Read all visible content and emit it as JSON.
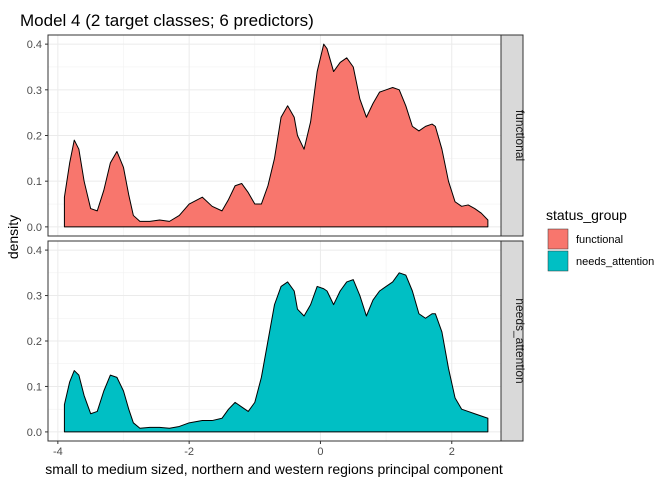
{
  "chart_data": {
    "type": "area",
    "title": "Model 4 (2 target classes; 6 predictors)",
    "xlabel": "small to medium sized, northern and western regions principal component",
    "ylabel": "density",
    "xlim": [
      -4.15,
      2.75
    ],
    "ylim": [
      -0.02,
      0.42
    ],
    "x_ticks": [
      -4,
      -2,
      0,
      2
    ],
    "x_tick_labels": [
      "-4",
      "-2",
      "0",
      "2"
    ],
    "y_ticks": [
      0.0,
      0.1,
      0.2,
      0.3,
      0.4
    ],
    "y_tick_labels": [
      "0.0",
      "0.1",
      "0.2",
      "0.3",
      "0.4"
    ],
    "grid": true,
    "facet_by": "status_group",
    "legend": {
      "title": "status_group",
      "position": "right",
      "entries": [
        {
          "label": "functional",
          "color": "#F8766D"
        },
        {
          "label": "needs_attention",
          "color": "#00BFC4"
        }
      ]
    },
    "series": [
      {
        "name": "functional",
        "color": "#F8766D",
        "x": [
          -3.9,
          -3.82,
          -3.75,
          -3.68,
          -3.6,
          -3.5,
          -3.4,
          -3.3,
          -3.2,
          -3.1,
          -3.0,
          -2.92,
          -2.85,
          -2.75,
          -2.6,
          -2.45,
          -2.3,
          -2.15,
          -2.0,
          -1.8,
          -1.65,
          -1.5,
          -1.4,
          -1.3,
          -1.2,
          -1.1,
          -1.0,
          -0.9,
          -0.8,
          -0.7,
          -0.6,
          -0.5,
          -0.4,
          -0.35,
          -0.25,
          -0.15,
          -0.05,
          0.05,
          0.1,
          0.2,
          0.3,
          0.4,
          0.5,
          0.6,
          0.7,
          0.8,
          0.9,
          1.0,
          1.1,
          1.2,
          1.3,
          1.4,
          1.5,
          1.6,
          1.7,
          1.75,
          1.85,
          1.95,
          2.05,
          2.15,
          2.25,
          2.35,
          2.45,
          2.55
        ],
        "y": [
          0.065,
          0.14,
          0.19,
          0.17,
          0.1,
          0.04,
          0.035,
          0.08,
          0.14,
          0.165,
          0.13,
          0.07,
          0.025,
          0.012,
          0.012,
          0.015,
          0.012,
          0.025,
          0.05,
          0.065,
          0.045,
          0.035,
          0.06,
          0.09,
          0.095,
          0.075,
          0.05,
          0.05,
          0.09,
          0.15,
          0.24,
          0.265,
          0.24,
          0.2,
          0.17,
          0.23,
          0.34,
          0.4,
          0.39,
          0.34,
          0.36,
          0.37,
          0.35,
          0.28,
          0.24,
          0.27,
          0.295,
          0.3,
          0.305,
          0.3,
          0.265,
          0.22,
          0.21,
          0.22,
          0.225,
          0.22,
          0.17,
          0.1,
          0.055,
          0.045,
          0.048,
          0.04,
          0.03,
          0.015
        ]
      },
      {
        "name": "needs_attention",
        "color": "#00BFC4",
        "x": [
          -3.9,
          -3.82,
          -3.75,
          -3.68,
          -3.6,
          -3.5,
          -3.4,
          -3.3,
          -3.2,
          -3.1,
          -3.0,
          -2.92,
          -2.85,
          -2.75,
          -2.6,
          -2.45,
          -2.3,
          -2.15,
          -2.0,
          -1.8,
          -1.65,
          -1.5,
          -1.4,
          -1.3,
          -1.2,
          -1.1,
          -1.0,
          -0.9,
          -0.8,
          -0.7,
          -0.6,
          -0.5,
          -0.4,
          -0.35,
          -0.25,
          -0.15,
          -0.05,
          0.05,
          0.1,
          0.2,
          0.3,
          0.4,
          0.5,
          0.6,
          0.7,
          0.8,
          0.9,
          1.0,
          1.1,
          1.2,
          1.3,
          1.4,
          1.5,
          1.6,
          1.7,
          1.75,
          1.85,
          1.95,
          2.05,
          2.15,
          2.25,
          2.35,
          2.45,
          2.55
        ],
        "y": [
          0.06,
          0.11,
          0.135,
          0.125,
          0.08,
          0.04,
          0.045,
          0.09,
          0.125,
          0.12,
          0.09,
          0.05,
          0.02,
          0.008,
          0.01,
          0.01,
          0.008,
          0.012,
          0.02,
          0.025,
          0.025,
          0.03,
          0.05,
          0.065,
          0.055,
          0.045,
          0.065,
          0.12,
          0.2,
          0.28,
          0.32,
          0.33,
          0.31,
          0.27,
          0.255,
          0.28,
          0.32,
          0.315,
          0.31,
          0.28,
          0.31,
          0.33,
          0.335,
          0.3,
          0.255,
          0.29,
          0.31,
          0.32,
          0.33,
          0.35,
          0.345,
          0.31,
          0.26,
          0.25,
          0.26,
          0.26,
          0.22,
          0.14,
          0.075,
          0.05,
          0.045,
          0.04,
          0.035,
          0.03
        ]
      }
    ]
  }
}
